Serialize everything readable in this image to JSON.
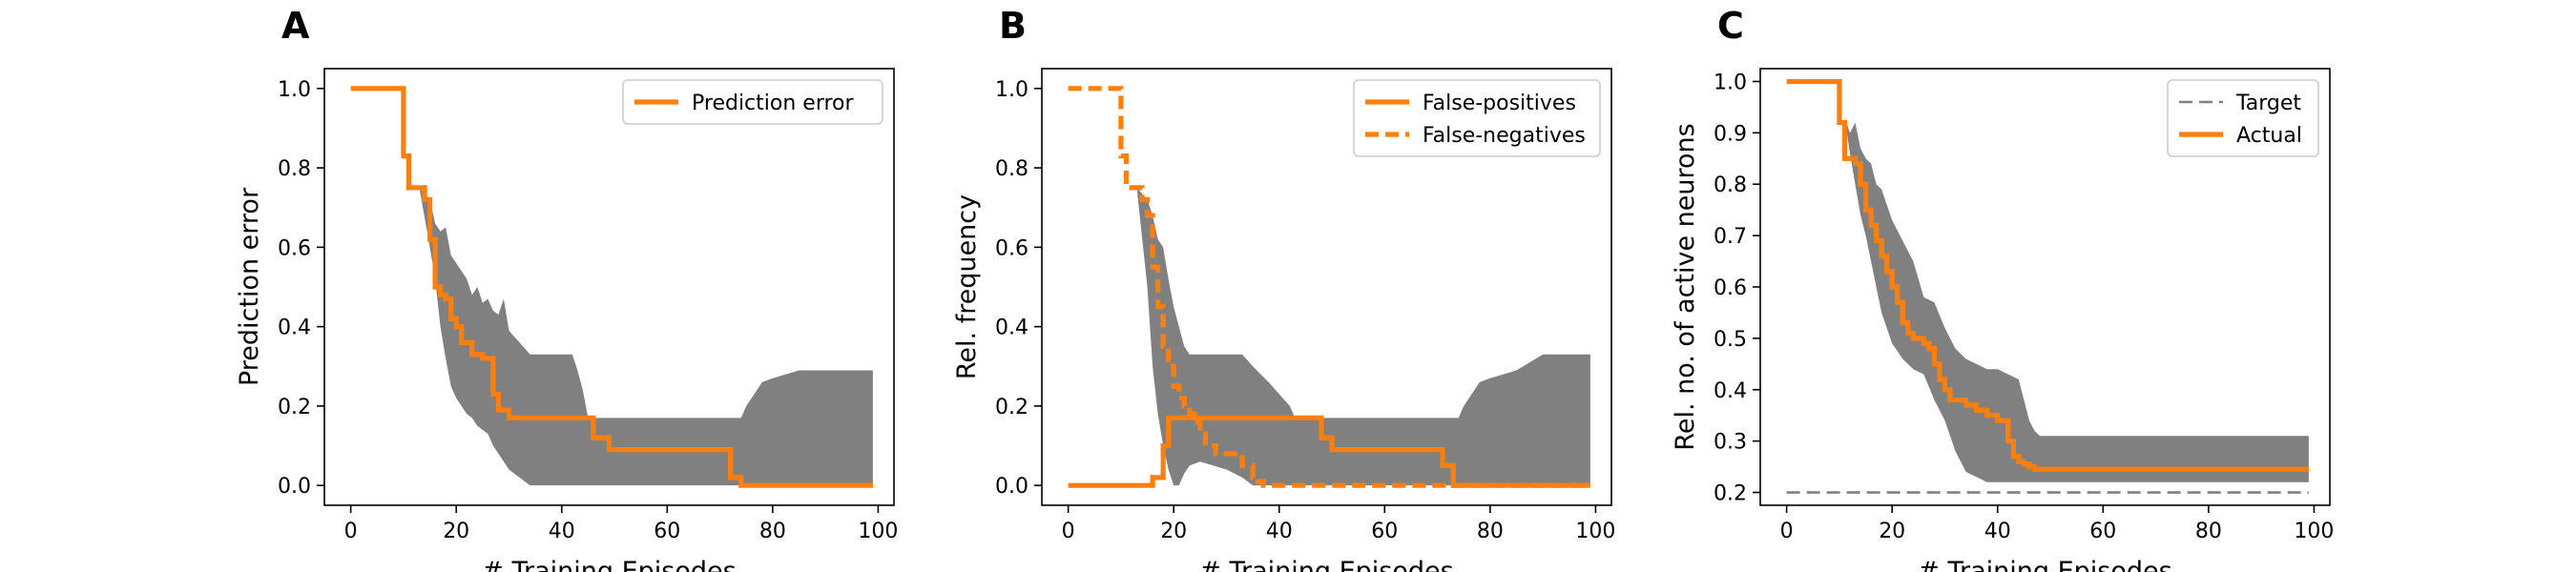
{
  "chart_data": [
    {
      "id": "A",
      "type": "line",
      "panel_label": "A",
      "xlabel": "# Training Episodes",
      "ylabel": "Prediction error",
      "xlim": [
        -5,
        103
      ],
      "ylim": [
        -0.05,
        1.05
      ],
      "xticks": [
        0,
        20,
        40,
        60,
        80,
        100
      ],
      "yticks": [
        0.0,
        0.2,
        0.4,
        0.6,
        0.8,
        1.0
      ],
      "ytick_decimals": 1,
      "legend_position": "top-right",
      "series": [
        {
          "name": "Prediction error",
          "color": "#ff7f0e",
          "dash": "solid",
          "step": true,
          "x": [
            0,
            8,
            10,
            11,
            14,
            15,
            16,
            17,
            18,
            19,
            20,
            21,
            22,
            23,
            25,
            27,
            28,
            30,
            31,
            40,
            43,
            46,
            49,
            50,
            55,
            60,
            65,
            70,
            72,
            74,
            80,
            85,
            90,
            95,
            99
          ],
          "y": [
            1.0,
            1.0,
            0.83,
            0.75,
            0.72,
            0.62,
            0.5,
            0.48,
            0.47,
            0.42,
            0.4,
            0.36,
            0.36,
            0.33,
            0.32,
            0.23,
            0.19,
            0.17,
            0.17,
            0.17,
            0.17,
            0.12,
            0.09,
            0.09,
            0.09,
            0.09,
            0.09,
            0.09,
            0.02,
            0.0,
            0.0,
            0.0,
            0.0,
            0.0,
            0.0
          ]
        }
      ],
      "band": {
        "color": "#808080",
        "x": [
          13,
          15,
          16,
          17,
          18,
          19,
          20,
          22,
          23,
          24,
          25,
          26,
          27,
          28,
          29,
          30,
          32,
          34,
          35,
          40,
          42,
          43,
          44,
          45,
          50,
          60,
          70,
          72,
          74,
          75,
          76,
          77,
          78,
          80,
          85,
          90,
          95,
          99
        ],
        "upper": [
          0.75,
          0.72,
          0.66,
          0.64,
          0.65,
          0.58,
          0.56,
          0.52,
          0.48,
          0.5,
          0.46,
          0.47,
          0.44,
          0.43,
          0.47,
          0.39,
          0.36,
          0.33,
          0.33,
          0.33,
          0.33,
          0.29,
          0.24,
          0.17,
          0.17,
          0.17,
          0.17,
          0.17,
          0.17,
          0.2,
          0.22,
          0.24,
          0.26,
          0.27,
          0.29,
          0.29,
          0.29,
          0.29
        ],
        "lower": [
          0.75,
          0.6,
          0.52,
          0.4,
          0.32,
          0.25,
          0.22,
          0.18,
          0.17,
          0.15,
          0.14,
          0.13,
          0.1,
          0.08,
          0.06,
          0.04,
          0.02,
          0.0,
          0.0,
          0.0,
          0.0,
          0.0,
          0.0,
          0.0,
          0.0,
          0.0,
          0.0,
          0.0,
          0.0,
          0.0,
          0.0,
          0.0,
          0.0,
          0.0,
          0.0,
          0.0,
          0.0,
          0.0
        ]
      }
    },
    {
      "id": "B",
      "type": "line",
      "panel_label": "B",
      "xlabel": "# Training Episodes",
      "ylabel": "Rel. frequency",
      "xlim": [
        -5,
        103
      ],
      "ylim": [
        -0.05,
        1.05
      ],
      "xticks": [
        0,
        20,
        40,
        60,
        80,
        100
      ],
      "yticks": [
        0.0,
        0.2,
        0.4,
        0.6,
        0.8,
        1.0
      ],
      "ytick_decimals": 1,
      "legend_position": "top-right",
      "series": [
        {
          "name": "False-positives",
          "color": "#ff7f0e",
          "dash": "solid",
          "step": true,
          "x": [
            0,
            15,
            16,
            18,
            19,
            20,
            30,
            40,
            45,
            46,
            48,
            50,
            60,
            70,
            71,
            73,
            74,
            80,
            90,
            99
          ],
          "y": [
            0.0,
            0.0,
            0.02,
            0.1,
            0.17,
            0.17,
            0.17,
            0.17,
            0.17,
            0.17,
            0.12,
            0.09,
            0.09,
            0.09,
            0.05,
            0.0,
            0.0,
            0.0,
            0.0,
            0.0
          ]
        },
        {
          "name": "False-negatives",
          "color": "#ff7f0e",
          "dash": "dashed",
          "step": true,
          "x": [
            0,
            8,
            10,
            11,
            14,
            15,
            16,
            17,
            18,
            19,
            20,
            21,
            22,
            23,
            24,
            25,
            26,
            28,
            30,
            32,
            33,
            35,
            36,
            37,
            38,
            40,
            50,
            60,
            70,
            99
          ],
          "y": [
            1.0,
            1.0,
            0.83,
            0.75,
            0.72,
            0.68,
            0.55,
            0.45,
            0.35,
            0.3,
            0.25,
            0.22,
            0.2,
            0.18,
            0.16,
            0.13,
            0.1,
            0.08,
            0.08,
            0.08,
            0.05,
            0.02,
            0.01,
            0.0,
            0.0,
            0.0,
            0.0,
            0.0,
            0.0,
            0.0
          ]
        }
      ],
      "band": {
        "color": "#808080",
        "x": [
          13,
          15,
          16,
          17,
          18,
          19,
          20,
          21,
          22,
          23,
          25,
          30,
          33,
          35,
          38,
          40,
          42,
          43,
          44,
          45,
          50,
          60,
          70,
          72,
          74,
          75,
          76,
          77,
          78,
          80,
          85,
          90,
          95,
          99
        ],
        "upper": [
          0.75,
          0.72,
          0.68,
          0.62,
          0.6,
          0.52,
          0.45,
          0.4,
          0.35,
          0.33,
          0.33,
          0.33,
          0.33,
          0.3,
          0.26,
          0.23,
          0.2,
          0.17,
          0.17,
          0.17,
          0.17,
          0.17,
          0.17,
          0.17,
          0.17,
          0.2,
          0.22,
          0.24,
          0.26,
          0.27,
          0.29,
          0.33,
          0.33,
          0.33
        ],
        "lower": [
          0.75,
          0.5,
          0.3,
          0.18,
          0.1,
          0.04,
          0.0,
          0.0,
          0.03,
          0.05,
          0.06,
          0.04,
          0.02,
          0.0,
          0.0,
          0.0,
          0.0,
          0.0,
          0.0,
          0.0,
          0.0,
          0.0,
          0.0,
          0.0,
          0.0,
          0.0,
          0.0,
          0.0,
          0.0,
          0.0,
          0.0,
          0.0,
          0.0,
          0.0
        ]
      }
    },
    {
      "id": "C",
      "type": "line",
      "panel_label": "C",
      "xlabel": "# Training Episodes",
      "ylabel": "Rel. no. of active neurons",
      "xlim": [
        -5,
        103
      ],
      "ylim": [
        0.175,
        1.025
      ],
      "xticks": [
        0,
        20,
        40,
        60,
        80,
        100
      ],
      "yticks": [
        0.2,
        0.3,
        0.4,
        0.5,
        0.6,
        0.7,
        0.8,
        0.9,
        1.0
      ],
      "ytick_decimals": 1,
      "legend_position": "top-right",
      "series": [
        {
          "name": "Target",
          "color": "#808080",
          "dash": "dashed",
          "step": false,
          "x": [
            0,
            99
          ],
          "y": [
            0.2,
            0.2
          ]
        },
        {
          "name": "Actual",
          "color": "#ff7f0e",
          "dash": "solid",
          "step": true,
          "x": [
            0,
            8,
            10,
            11,
            13,
            14,
            15,
            16,
            17,
            18,
            19,
            20,
            21,
            22,
            23,
            24,
            25,
            26,
            27,
            28,
            29,
            30,
            31,
            32,
            34,
            36,
            38,
            40,
            42,
            43,
            44,
            45,
            46,
            47,
            48,
            50,
            60,
            70,
            80,
            90,
            99
          ],
          "y": [
            1.0,
            1.0,
            0.92,
            0.85,
            0.84,
            0.8,
            0.75,
            0.72,
            0.69,
            0.66,
            0.63,
            0.6,
            0.57,
            0.53,
            0.51,
            0.5,
            0.5,
            0.49,
            0.48,
            0.45,
            0.42,
            0.4,
            0.38,
            0.38,
            0.37,
            0.36,
            0.35,
            0.34,
            0.3,
            0.27,
            0.26,
            0.255,
            0.25,
            0.245,
            0.245,
            0.245,
            0.245,
            0.245,
            0.245,
            0.245,
            0.245
          ]
        }
      ],
      "band": {
        "color": "#808080",
        "x": [
          11,
          12,
          13,
          14,
          15,
          16,
          17,
          18,
          20,
          22,
          24,
          26,
          28,
          30,
          32,
          34,
          36,
          38,
          40,
          42,
          44,
          45,
          46,
          47,
          48,
          50,
          60,
          70,
          80,
          90,
          99
        ],
        "upper": [
          0.93,
          0.9,
          0.92,
          0.87,
          0.85,
          0.84,
          0.8,
          0.79,
          0.73,
          0.69,
          0.65,
          0.58,
          0.57,
          0.52,
          0.48,
          0.46,
          0.45,
          0.44,
          0.44,
          0.43,
          0.42,
          0.38,
          0.34,
          0.32,
          0.31,
          0.31,
          0.31,
          0.31,
          0.31,
          0.31,
          0.31
        ],
        "lower": [
          0.93,
          0.86,
          0.8,
          0.74,
          0.7,
          0.65,
          0.6,
          0.55,
          0.49,
          0.46,
          0.44,
          0.43,
          0.38,
          0.34,
          0.28,
          0.24,
          0.23,
          0.22,
          0.22,
          0.22,
          0.22,
          0.22,
          0.22,
          0.22,
          0.22,
          0.22,
          0.22,
          0.22,
          0.22,
          0.22,
          0.22
        ]
      }
    }
  ]
}
